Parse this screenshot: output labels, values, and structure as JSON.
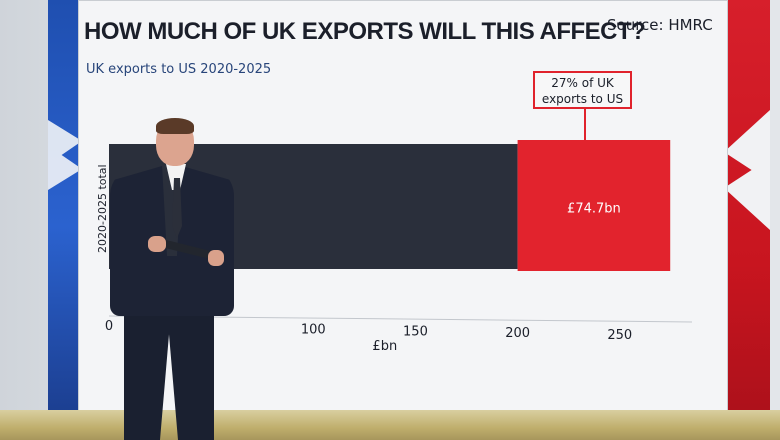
{
  "title": "HOW MUCH OF UK EXPORTS WILL THIS AFFECT?",
  "source": "Source: HMRC",
  "subtitle": "UK exports to US 2020-2025",
  "annotation": {
    "line1": "27% of UK",
    "line2": "exports to US"
  },
  "colors": {
    "base_bar": "#2a2f3b",
    "highlight_bar": "#e2232d",
    "axis_text": "#1b1f2a",
    "flag_blue": "#2b62cf",
    "flag_red": "#d71f2b"
  },
  "chart_data": {
    "type": "bar",
    "orientation": "horizontal",
    "stacked": true,
    "categories": [
      "2020-2025 total"
    ],
    "series": [
      {
        "values": [
          200
        ]
      },
      {
        "values": [
          74.7
        ],
        "label": "£74.7bn"
      }
    ],
    "xlabel": "£bn",
    "ylabel": "2020-2025 total",
    "xlim": [
      0,
      279
    ],
    "xticks": [
      0,
      100,
      150,
      200,
      250
    ],
    "tick_labels": [
      "0",
      "100",
      "150",
      "200",
      "250"
    ]
  }
}
